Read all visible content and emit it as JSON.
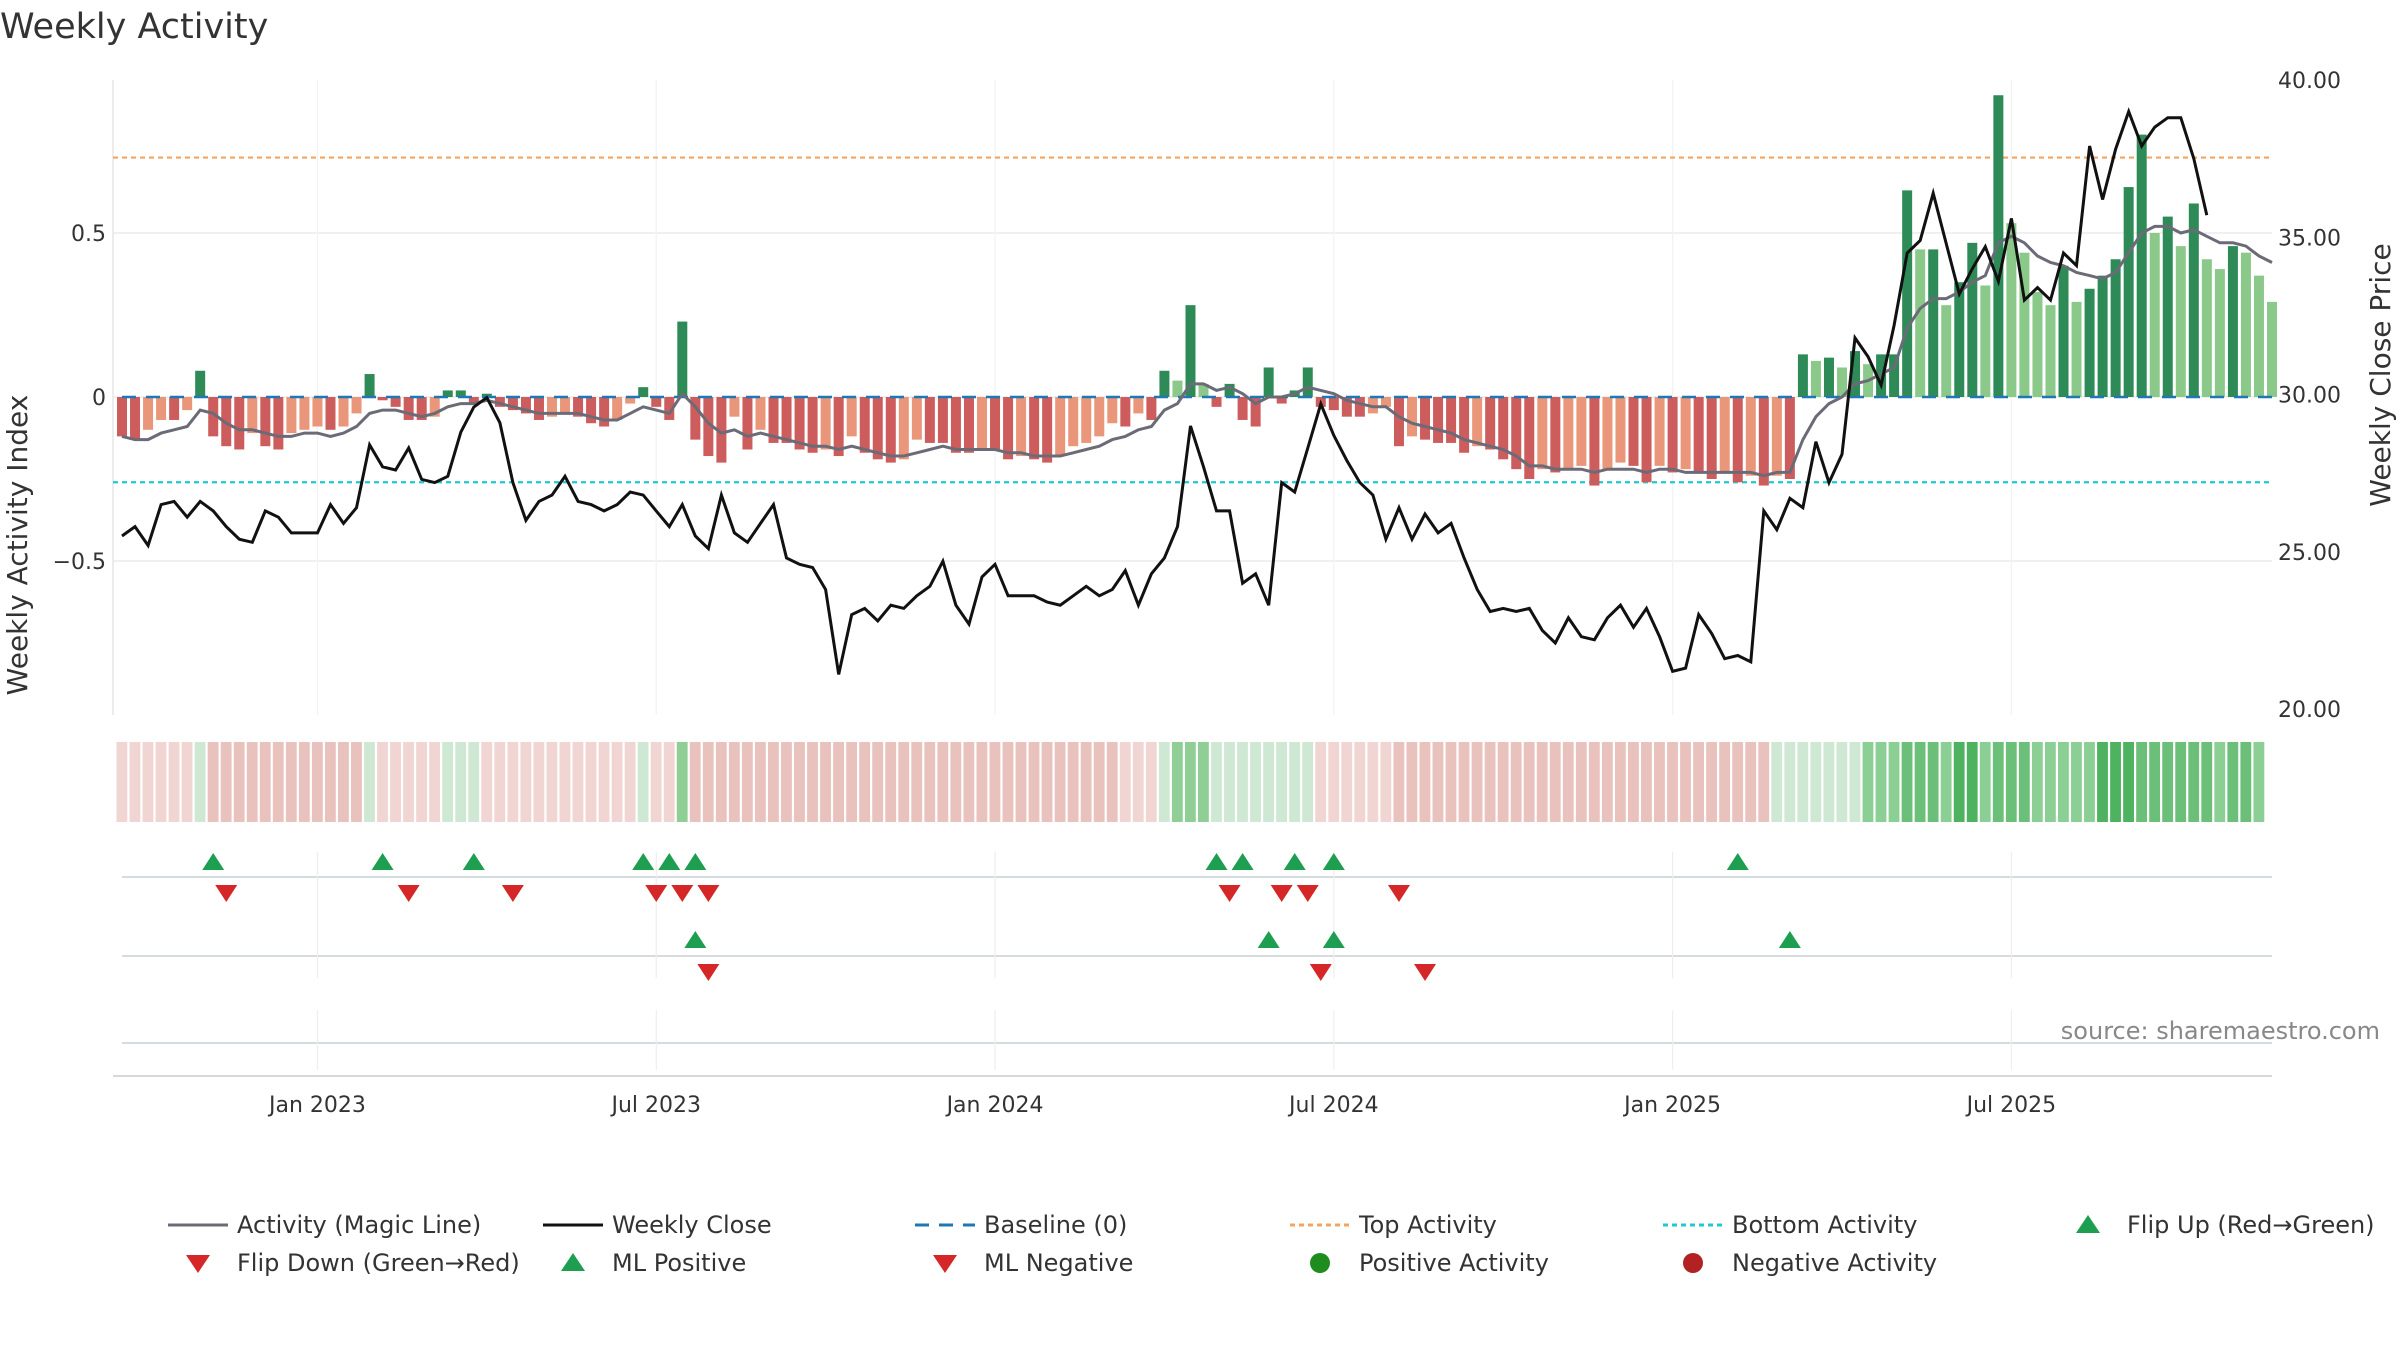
{
  "chart_data": {
    "type": "bar",
    "title": "Weekly Activity",
    "ylabel_left": "Weekly Activity Index",
    "ylabel_right": "Weekly Close Price",
    "source": "source: sharemaestro.com",
    "x_tick_labels": [
      "Jan 2023",
      "Jul 2023",
      "Jan 2024",
      "Jul 2024",
      "Jan 2025",
      "Jul 2025"
    ],
    "x_tick_weeks": [
      15,
      41,
      67,
      93,
      119,
      145
    ],
    "left_axis": {
      "range": [
        -1.0,
        1.0
      ],
      "ticks": [
        0.5,
        0,
        -0.5
      ],
      "tick_labels": [
        "0.5",
        "0",
        "−0.5"
      ]
    },
    "right_axis": {
      "range": [
        20.0,
        40.0
      ],
      "ticks": [
        40,
        35,
        30,
        25,
        20
      ],
      "tick_labels": [
        "40.00",
        "35.00",
        "30.00",
        "25.00",
        "20.00"
      ]
    },
    "top_activity": 0.73,
    "bottom_activity": -0.26,
    "activity": [
      -0.12,
      -0.13,
      -0.1,
      -0.07,
      -0.07,
      -0.04,
      0.08,
      -0.12,
      -0.15,
      -0.16,
      -0.11,
      -0.15,
      -0.16,
      -0.11,
      -0.1,
      -0.09,
      -0.1,
      -0.09,
      -0.05,
      0.07,
      -0.01,
      -0.03,
      -0.07,
      -0.07,
      -0.06,
      0.02,
      0.02,
      -0.02,
      0.01,
      -0.03,
      -0.04,
      -0.05,
      -0.07,
      -0.06,
      -0.05,
      -0.06,
      -0.08,
      -0.09,
      -0.07,
      -0.02,
      0.03,
      -0.03,
      -0.07,
      0.23,
      -0.13,
      -0.18,
      -0.2,
      -0.06,
      -0.16,
      -0.1,
      -0.14,
      -0.14,
      -0.16,
      -0.17,
      -0.16,
      -0.18,
      -0.12,
      -0.17,
      -0.19,
      -0.2,
      -0.19,
      -0.13,
      -0.14,
      -0.14,
      -0.17,
      -0.17,
      -0.16,
      -0.16,
      -0.19,
      -0.18,
      -0.19,
      -0.2,
      -0.18,
      -0.15,
      -0.14,
      -0.12,
      -0.08,
      -0.09,
      -0.05,
      -0.07,
      0.08,
      0.05,
      0.28,
      0.04,
      -0.03,
      0.04,
      -0.07,
      -0.09,
      0.09,
      -0.02,
      0.02,
      0.09,
      -0.03,
      -0.04,
      -0.06,
      -0.06,
      -0.05,
      -0.03,
      -0.15,
      -0.12,
      -0.13,
      -0.14,
      -0.14,
      -0.17,
      -0.15,
      -0.16,
      -0.19,
      -0.22,
      -0.25,
      -0.22,
      -0.23,
      -0.22,
      -0.21,
      -0.27,
      -0.22,
      -0.2,
      -0.21,
      -0.26,
      -0.21,
      -0.23,
      -0.22,
      -0.23,
      -0.25,
      -0.23,
      -0.26,
      -0.24,
      -0.27,
      -0.24,
      -0.25,
      0.13,
      0.11,
      0.12,
      0.09,
      0.14,
      0.1,
      0.13,
      0.13,
      0.63,
      0.45,
      0.45,
      0.28,
      0.35,
      0.47,
      0.34,
      0.92,
      0.53,
      0.44,
      0.32,
      0.28,
      0.4,
      0.29,
      0.33,
      0.37,
      0.42,
      0.64,
      0.8,
      0.5,
      0.55,
      0.46,
      0.59,
      0.42,
      0.39,
      0.46,
      0.44,
      0.37,
      0.29
    ],
    "magic_line": [
      -0.12,
      -0.13,
      -0.13,
      -0.11,
      -0.1,
      -0.09,
      -0.04,
      -0.05,
      -0.08,
      -0.1,
      -0.1,
      -0.11,
      -0.12,
      -0.12,
      -0.11,
      -0.11,
      -0.12,
      -0.11,
      -0.09,
      -0.05,
      -0.04,
      -0.04,
      -0.05,
      -0.06,
      -0.05,
      -0.03,
      -0.02,
      -0.02,
      -0.01,
      -0.02,
      -0.03,
      -0.04,
      -0.05,
      -0.05,
      -0.05,
      -0.05,
      -0.06,
      -0.07,
      -0.07,
      -0.05,
      -0.03,
      -0.04,
      -0.05,
      0.01,
      -0.03,
      -0.08,
      -0.11,
      -0.1,
      -0.12,
      -0.11,
      -0.12,
      -0.13,
      -0.14,
      -0.15,
      -0.15,
      -0.16,
      -0.15,
      -0.16,
      -0.17,
      -0.18,
      -0.18,
      -0.17,
      -0.16,
      -0.15,
      -0.16,
      -0.16,
      -0.16,
      -0.16,
      -0.17,
      -0.17,
      -0.18,
      -0.18,
      -0.18,
      -0.17,
      -0.16,
      -0.15,
      -0.13,
      -0.12,
      -0.1,
      -0.09,
      -0.04,
      -0.02,
      0.04,
      0.04,
      0.02,
      0.03,
      0.01,
      -0.02,
      0.0,
      0.0,
      0.01,
      0.03,
      0.02,
      0.01,
      -0.01,
      -0.02,
      -0.03,
      -0.03,
      -0.06,
      -0.08,
      -0.09,
      -0.1,
      -0.11,
      -0.13,
      -0.14,
      -0.15,
      -0.16,
      -0.18,
      -0.21,
      -0.21,
      -0.22,
      -0.22,
      -0.22,
      -0.23,
      -0.22,
      -0.22,
      -0.22,
      -0.23,
      -0.22,
      -0.22,
      -0.23,
      -0.23,
      -0.23,
      -0.23,
      -0.23,
      -0.23,
      -0.24,
      -0.23,
      -0.23,
      -0.13,
      -0.06,
      -0.02,
      0.0,
      0.04,
      0.05,
      0.07,
      0.09,
      0.21,
      0.27,
      0.3,
      0.3,
      0.32,
      0.35,
      0.37,
      0.47,
      0.49,
      0.47,
      0.43,
      0.41,
      0.4,
      0.38,
      0.37,
      0.36,
      0.38,
      0.44,
      0.5,
      0.52,
      0.52,
      0.5,
      0.51,
      0.49,
      0.47,
      0.47,
      0.46,
      0.43,
      0.41
    ],
    "weekly_close": [
      25.5,
      25.8,
      25.2,
      26.5,
      26.6,
      26.1,
      26.6,
      26.3,
      25.8,
      25.4,
      25.3,
      26.3,
      26.1,
      25.6,
      25.6,
      25.6,
      26.5,
      25.9,
      26.4,
      28.4,
      27.7,
      27.6,
      28.3,
      27.3,
      27.2,
      27.4,
      28.8,
      29.6,
      29.9,
      29.1,
      27.2,
      26.0,
      26.6,
      26.8,
      27.4,
      26.6,
      26.5,
      26.3,
      26.5,
      26.9,
      26.8,
      26.3,
      25.8,
      26.5,
      25.5,
      25.1,
      26.8,
      25.6,
      25.3,
      25.9,
      26.5,
      24.8,
      24.6,
      24.5,
      23.8,
      21.1,
      23.0,
      23.2,
      22.8,
      23.3,
      23.2,
      23.6,
      23.9,
      24.7,
      23.3,
      22.7,
      24.2,
      24.6,
      23.6,
      23.6,
      23.6,
      23.4,
      23.3,
      23.6,
      23.9,
      23.6,
      23.8,
      24.4,
      23.3,
      24.3,
      24.8,
      25.8,
      29.0,
      27.7,
      26.3,
      26.3,
      24.0,
      24.3,
      23.3,
      27.2,
      26.9,
      28.3,
      29.7,
      28.7,
      27.9,
      27.2,
      26.8,
      25.4,
      26.4,
      25.4,
      26.2,
      25.6,
      25.9,
      24.8,
      23.8,
      23.1,
      23.2,
      23.1,
      23.2,
      22.5,
      22.1,
      22.9,
      22.3,
      22.2,
      22.9,
      23.3,
      22.6,
      23.2,
      22.3,
      21.2,
      21.3,
      23.0,
      22.4,
      21.6,
      21.7,
      21.5,
      26.3,
      25.7,
      26.7,
      26.4,
      28.5,
      27.2,
      28.1,
      31.8,
      31.2,
      30.3,
      32.2,
      34.5,
      34.9,
      36.4,
      34.8,
      33.2,
      34.0,
      34.7,
      33.6,
      35.6,
      33.0,
      33.4,
      33.0,
      34.5,
      34.1,
      37.9,
      36.2,
      37.8,
      39.0,
      37.9,
      38.5,
      38.8,
      38.8,
      37.5,
      35.7
    ],
    "background_shade": [
      -1,
      -1,
      -1,
      -1,
      -1,
      -1,
      0,
      -2,
      -2,
      -2,
      -2,
      -2,
      -2,
      -2,
      -2,
      -2,
      -2,
      -2,
      -2,
      0,
      -1,
      -1,
      -1,
      -1,
      -1,
      0,
      0,
      0,
      -1,
      -1,
      -1,
      -1,
      -1,
      -1,
      -1,
      -1,
      -1,
      -1,
      -1,
      -1,
      0,
      -1,
      -1,
      1,
      -2,
      -2,
      -2,
      -2,
      -2,
      -2,
      -2,
      -2,
      -2,
      -2,
      -2,
      -2,
      -2,
      -2,
      -2,
      -2,
      -2,
      -2,
      -2,
      -2,
      -2,
      -2,
      -2,
      -2,
      -2,
      -2,
      -2,
      -2,
      -2,
      -2,
      -2,
      -2,
      -2,
      -1,
      -1,
      -1,
      0,
      1,
      1,
      1,
      0,
      0,
      0,
      0,
      0,
      0,
      0,
      0,
      -1,
      -1,
      -1,
      -1,
      -1,
      -1,
      -2,
      -2,
      -2,
      -2,
      -2,
      -2,
      -2,
      -2,
      -2,
      -2,
      -2,
      -2,
      -2,
      -2,
      -2,
      -2,
      -2,
      -2,
      -2,
      -2,
      -2,
      -2,
      -2,
      -2,
      -2,
      -2,
      -2,
      -2,
      -2,
      0,
      0,
      0,
      0,
      0,
      0,
      0,
      2,
      2,
      2,
      2,
      2,
      2,
      2,
      3,
      3,
      2,
      2,
      2,
      2,
      2,
      2,
      2,
      2,
      2,
      3,
      3,
      3,
      2,
      2,
      2,
      2,
      2,
      2,
      2,
      2,
      2,
      2
    ],
    "flip_up_weeks": [
      7,
      20,
      27,
      40,
      42,
      44,
      84,
      86,
      90,
      93,
      124
    ],
    "flip_down_weeks": [
      8,
      22,
      30,
      41,
      43,
      45,
      85,
      89,
      91,
      98
    ],
    "ml_positive_weeks": [
      44,
      88,
      93,
      128
    ],
    "ml_negative_weeks": [
      45,
      92,
      100
    ],
    "legend": [
      "Activity (Magic Line)",
      "Weekly Close",
      "Baseline (0)",
      "Top Activity",
      "Bottom Activity",
      "Flip Up (Red→Green)",
      "Flip Down (Green→Red)",
      "ML Positive",
      "ML Negative",
      "Positive Activity",
      "Negative Activity"
    ],
    "colors": {
      "pos_strong": "#2e8b57",
      "pos_mid": "#4caf50",
      "pos_light": "#8bc98a",
      "neg_strong": "#cd5c5c",
      "neg_light": "#e9967a",
      "magic_line": "#6b6b78",
      "close_line": "#111111",
      "baseline": "#1f77b4",
      "top_line": "#f4a460",
      "bottom_line": "#20c9d0",
      "up_marker": "#1e9e50",
      "down_marker": "#d62728",
      "pos_dot": "#1e8c1e",
      "neg_dot": "#b22222",
      "grid": "#e8e8e8"
    }
  }
}
